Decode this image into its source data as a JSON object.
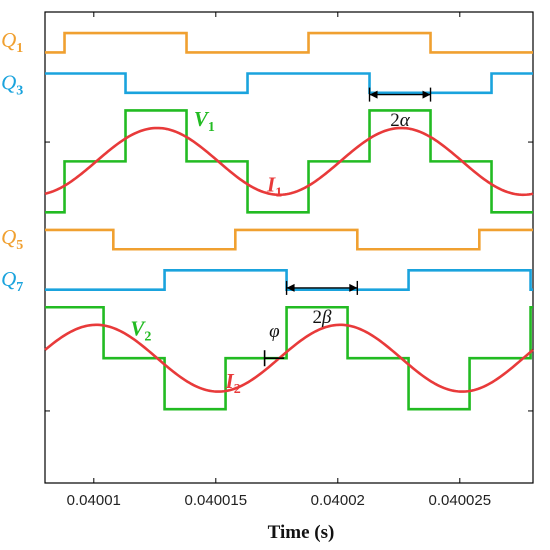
{
  "chart_data": {
    "type": "line",
    "xlabel": "Time (s)",
    "xlim": [
      0.040008,
      0.040028
    ],
    "x_ticks": [
      0.04001,
      0.040015,
      0.04002,
      0.040025
    ],
    "x_tick_labels": [
      "0.04001",
      "0.040015",
      "0.04002",
      "0.040025"
    ],
    "ylim": [
      -4.2,
      9.2
    ],
    "y_ticks": [
      -2.15,
      5.5
    ],
    "grid": false,
    "colors": {
      "orange": "#f0a030",
      "blue": "#1aa3dd",
      "green": "#22bb22",
      "red": "#e83a3a"
    },
    "series": [
      {
        "name": "Q1",
        "style": "step",
        "color": "#f0a030",
        "points": [
          [
            0.040008,
            8.05
          ],
          [
            0.0400088,
            8.05
          ],
          [
            0.0400088,
            8.6
          ],
          [
            0.0400138,
            8.6
          ],
          [
            0.0400138,
            8.05
          ],
          [
            0.0400188,
            8.05
          ],
          [
            0.0400188,
            8.6
          ],
          [
            0.0400238,
            8.6
          ],
          [
            0.0400238,
            8.05
          ],
          [
            0.040028,
            8.05
          ]
        ]
      },
      {
        "name": "Q3",
        "style": "step",
        "color": "#1aa3dd",
        "points": [
          [
            0.040008,
            7.45
          ],
          [
            0.0400113,
            7.45
          ],
          [
            0.0400113,
            6.9
          ],
          [
            0.0400163,
            6.9
          ],
          [
            0.0400163,
            7.45
          ],
          [
            0.0400213,
            7.45
          ],
          [
            0.0400213,
            6.9
          ],
          [
            0.0400263,
            6.9
          ],
          [
            0.0400263,
            7.45
          ],
          [
            0.040028,
            7.45
          ]
        ]
      },
      {
        "name": "V1",
        "style": "step",
        "color": "#22bb22",
        "points": [
          [
            0.040008,
            3.5
          ],
          [
            0.0400088,
            3.5
          ],
          [
            0.0400088,
            4.95
          ],
          [
            0.0400113,
            4.95
          ],
          [
            0.0400113,
            6.4
          ],
          [
            0.0400138,
            6.4
          ],
          [
            0.0400138,
            4.95
          ],
          [
            0.0400163,
            4.95
          ],
          [
            0.0400163,
            3.5
          ],
          [
            0.0400188,
            3.5
          ],
          [
            0.0400188,
            4.95
          ],
          [
            0.0400213,
            4.95
          ],
          [
            0.0400213,
            6.4
          ],
          [
            0.0400238,
            6.4
          ],
          [
            0.0400238,
            4.95
          ],
          [
            0.0400263,
            4.95
          ],
          [
            0.0400263,
            3.5
          ],
          [
            0.040028,
            3.5
          ]
        ]
      },
      {
        "name": "I1",
        "style": "sine",
        "color": "#e83a3a",
        "offset": 4.95,
        "amplitude": 0.95,
        "period": 1e-05,
        "peak_t": 0.0400126
      },
      {
        "name": "Q5",
        "style": "step",
        "color": "#f0a030",
        "points": [
          [
            0.040008,
            3.0
          ],
          [
            0.0400108,
            3.0
          ],
          [
            0.0400108,
            2.45
          ],
          [
            0.0400158,
            2.45
          ],
          [
            0.0400158,
            3.0
          ],
          [
            0.0400208,
            3.0
          ],
          [
            0.0400208,
            2.45
          ],
          [
            0.0400258,
            2.45
          ],
          [
            0.0400258,
            3.0
          ],
          [
            0.040028,
            3.0
          ]
        ]
      },
      {
        "name": "Q7",
        "style": "step",
        "color": "#1aa3dd",
        "points": [
          [
            0.040008,
            1.3
          ],
          [
            0.0400129,
            1.3
          ],
          [
            0.0400129,
            1.85
          ],
          [
            0.0400179,
            1.85
          ],
          [
            0.0400179,
            1.3
          ],
          [
            0.0400229,
            1.3
          ],
          [
            0.0400229,
            1.85
          ],
          [
            0.0400279,
            1.85
          ],
          [
            0.0400279,
            1.3
          ],
          [
            0.040028,
            1.3
          ]
        ]
      },
      {
        "name": "V2",
        "style": "step",
        "color": "#22bb22",
        "points": [
          [
            0.040008,
            0.8
          ],
          [
            0.0400104,
            0.8
          ],
          [
            0.0400104,
            -0.65
          ],
          [
            0.0400129,
            -0.65
          ],
          [
            0.0400129,
            -2.1
          ],
          [
            0.0400154,
            -2.1
          ],
          [
            0.0400154,
            -0.65
          ],
          [
            0.0400179,
            -0.65
          ],
          [
            0.0400179,
            0.8
          ],
          [
            0.0400204,
            0.8
          ],
          [
            0.0400204,
            -0.65
          ],
          [
            0.0400229,
            -0.65
          ],
          [
            0.0400229,
            -2.1
          ],
          [
            0.0400254,
            -2.1
          ],
          [
            0.0400254,
            -0.65
          ],
          [
            0.0400279,
            -0.65
          ],
          [
            0.0400279,
            0.8
          ],
          [
            0.040028,
            0.8
          ]
        ]
      },
      {
        "name": "I2",
        "style": "sine",
        "color": "#e83a3a",
        "offset": -0.65,
        "amplitude": 0.95,
        "period": 1e-05,
        "peak_t": 0.0400101
      }
    ],
    "labels": [
      {
        "text": "Q",
        "sub": "1",
        "color": "#f0a030",
        "x": 0.0400062,
        "y": 8.2,
        "style": "lbl"
      },
      {
        "text": "Q",
        "sub": "3",
        "color": "#1aa3dd",
        "x": 0.0400062,
        "y": 7.0,
        "style": "lbl"
      },
      {
        "text": "V",
        "sub": "1",
        "color": "#22bb22",
        "x": 0.0400141,
        "y": 5.95,
        "style": "lbl-b"
      },
      {
        "text": "I",
        "sub": "1",
        "color": "#e83a3a",
        "x": 0.0400171,
        "y": 4.1,
        "style": "lbl-b"
      },
      {
        "text": "Q",
        "sub": "5",
        "color": "#f0a030",
        "x": 0.0400062,
        "y": 2.6,
        "style": "lbl"
      },
      {
        "text": "Q",
        "sub": "7",
        "color": "#1aa3dd",
        "x": 0.0400062,
        "y": 1.4,
        "style": "lbl"
      },
      {
        "text": "V",
        "sub": "2",
        "color": "#22bb22",
        "x": 0.0400115,
        "y": 0.0,
        "style": "lbl-b"
      },
      {
        "text": "I",
        "sub": "2",
        "color": "#e83a3a",
        "x": 0.0400154,
        "y": -1.5,
        "style": "lbl-b"
      }
    ],
    "annotations": [
      {
        "type": "dim",
        "text": "2α",
        "x1": 0.0400213,
        "x2": 0.0400238,
        "y": 6.85,
        "label_y": 5.95
      },
      {
        "type": "dim",
        "text": "2β",
        "x1": 0.0400179,
        "x2": 0.0400208,
        "y": 1.35,
        "label_y": 0.35
      },
      {
        "type": "phi",
        "text": "φ",
        "x1": 0.040017,
        "x2": 0.0400178,
        "y": -0.65,
        "label_y": -0.05
      }
    ]
  }
}
